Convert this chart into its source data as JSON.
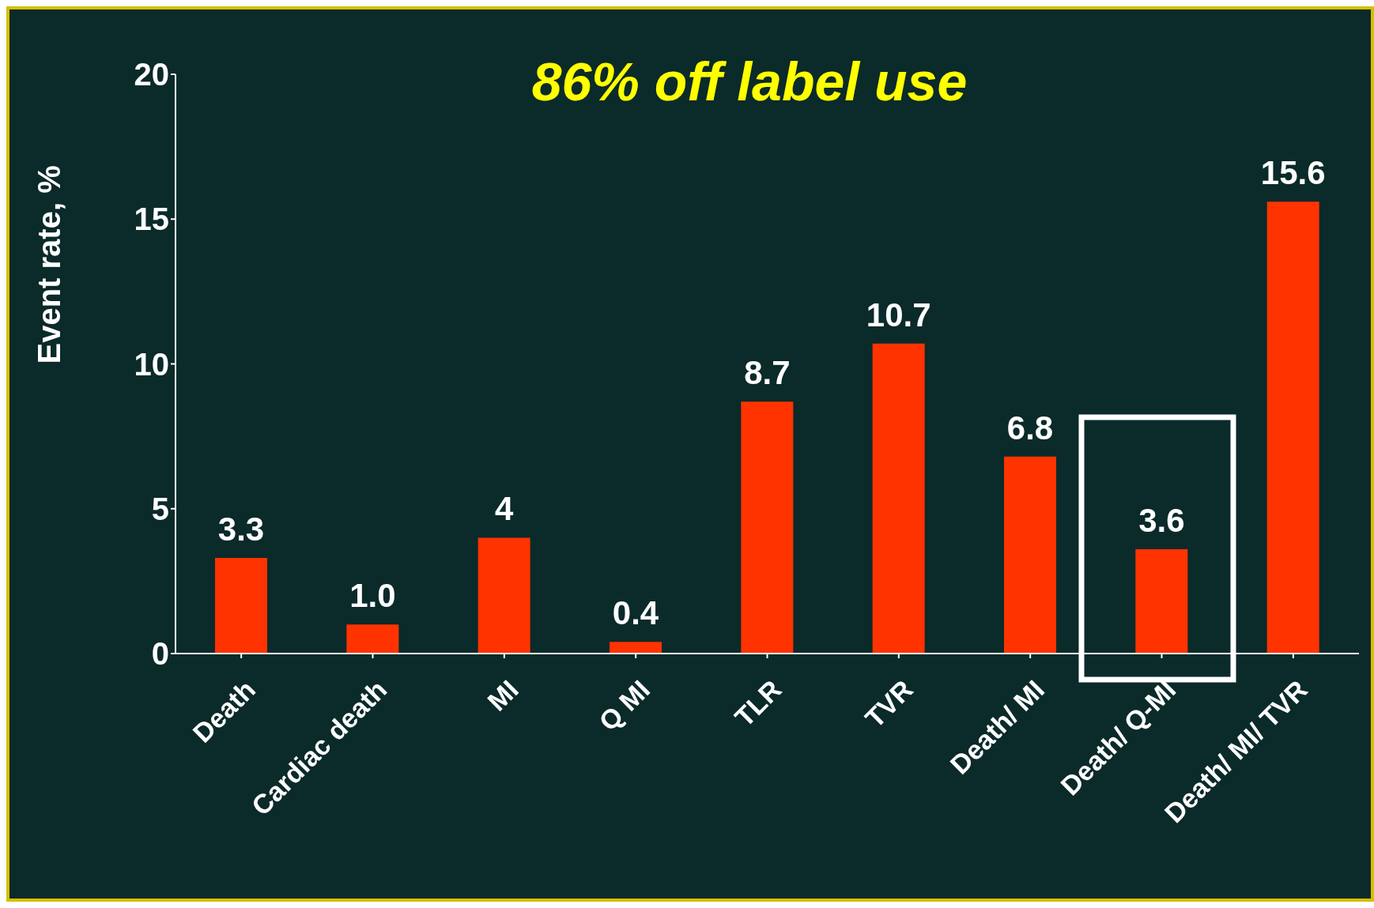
{
  "chart_data": {
    "type": "bar",
    "title": "86% off label use",
    "ylabel": "Event rate, %",
    "categories": [
      "Death",
      "Cardiac death",
      "MI",
      "Q MI",
      "TLR",
      "TVR",
      "Death/ MI",
      "Death/ Q-MI",
      "Death/ MI/ TVR"
    ],
    "values": [
      3.3,
      1.0,
      4,
      0.4,
      8.7,
      10.7,
      6.8,
      3.6,
      15.6
    ],
    "value_labels": [
      "3.3",
      "1.0",
      "4",
      "0.4",
      "8.7",
      "10.7",
      "6.8",
      "3.6",
      "15.6"
    ],
    "color": "#ff3300",
    "ylim": [
      0,
      20
    ],
    "yticks": [
      0,
      5,
      10,
      15,
      20
    ]
  }
}
